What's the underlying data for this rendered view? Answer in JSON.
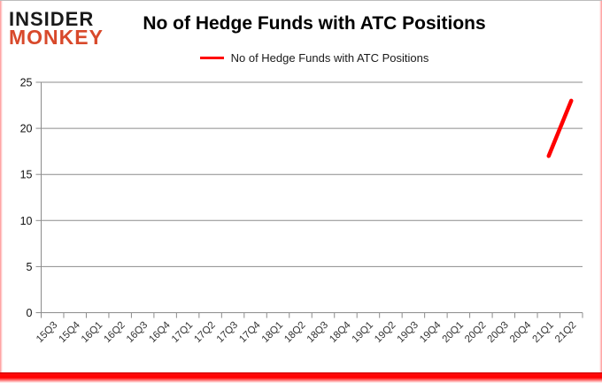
{
  "brand": {
    "line1": "INSIDER",
    "line2": "MONKEY",
    "color_line1": "#1a1a1a",
    "color_line2": "#d8492b"
  },
  "title": "No of Hedge Funds with ATC Positions",
  "legend": {
    "label": "No of Hedge Funds with ATC Positions",
    "color": "#ff0000"
  },
  "chart_data": {
    "type": "line",
    "title": "No of Hedge Funds with ATC Positions",
    "categories": [
      "15Q3",
      "15Q4",
      "16Q1",
      "16Q2",
      "16Q3",
      "16Q4",
      "17Q1",
      "17Q2",
      "17Q3",
      "17Q4",
      "18Q1",
      "18Q2",
      "18Q3",
      "18Q4",
      "19Q1",
      "19Q2",
      "19Q3",
      "19Q4",
      "20Q1",
      "20Q2",
      "20Q3",
      "20Q4",
      "21Q1",
      "21Q2"
    ],
    "series": [
      {
        "name": "No of Hedge Funds with ATC Positions",
        "color": "#ff0000",
        "values": [
          null,
          null,
          null,
          null,
          null,
          null,
          null,
          null,
          null,
          null,
          null,
          null,
          null,
          null,
          null,
          null,
          null,
          null,
          null,
          null,
          null,
          null,
          17,
          23
        ]
      }
    ],
    "ylim": [
      0,
      25
    ],
    "yticks": [
      0,
      5,
      10,
      15,
      20,
      25
    ],
    "xlabel": "",
    "ylabel": "",
    "grid": "horizontal-only",
    "legend_position": "top-center",
    "gridline_color": "#8c8c8c",
    "axis_color": "#8c8c8c",
    "tick_label_color": "#333333",
    "y_label_color": "#111111",
    "line_width": 4.5
  }
}
